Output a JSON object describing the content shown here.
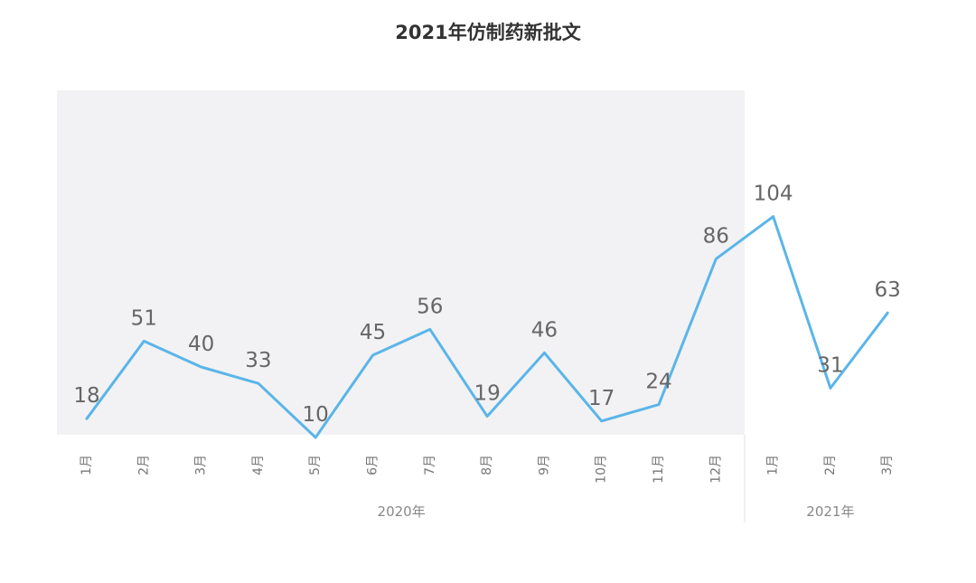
{
  "chart_data": {
    "type": "line",
    "title": "2021年仿制药新批文",
    "categories": [
      "1月",
      "2月",
      "3月",
      "4月",
      "5月",
      "6月",
      "7月",
      "8月",
      "9月",
      "10月",
      "11月",
      "12月",
      "1月",
      "2月",
      "3月"
    ],
    "series": [
      {
        "values": [
          18,
          51,
          40,
          33,
          10,
          45,
          56,
          19,
          46,
          17,
          24,
          86,
          104,
          31,
          63
        ]
      }
    ],
    "groups": [
      {
        "label": "2020年",
        "start": 0,
        "end": 11,
        "highlighted": true
      },
      {
        "label": "2021年",
        "start": 12,
        "end": 14,
        "highlighted": false
      }
    ],
    "data_labels": true,
    "line_color": "#5BB5E8",
    "highlight_color": "#F2F2F4",
    "legend": "none",
    "grid": false
  }
}
